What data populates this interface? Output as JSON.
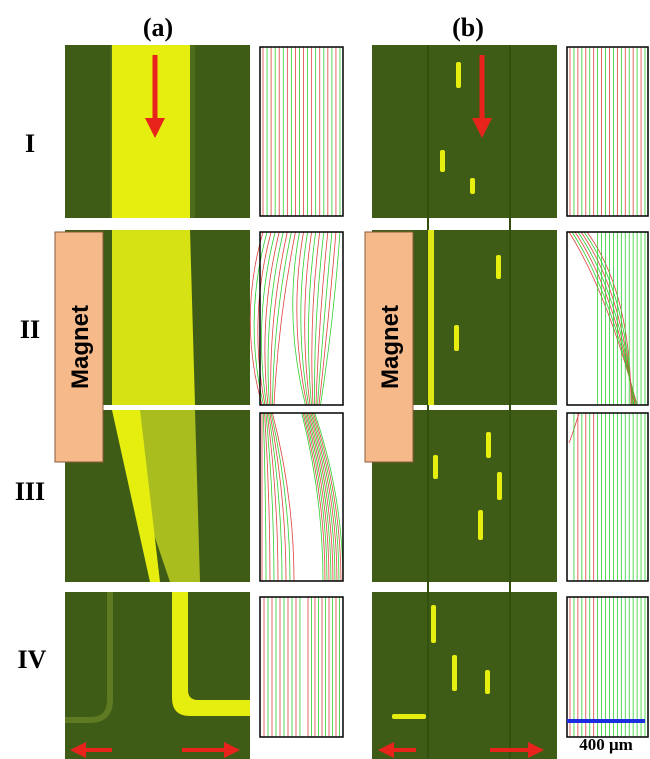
{
  "panels": [
    "(a)",
    "(b)"
  ],
  "rows": [
    "I",
    "II",
    "III",
    "IV"
  ],
  "magnet": [
    "Magnet",
    "Magnet"
  ],
  "scale_bar": "400 μm"
}
